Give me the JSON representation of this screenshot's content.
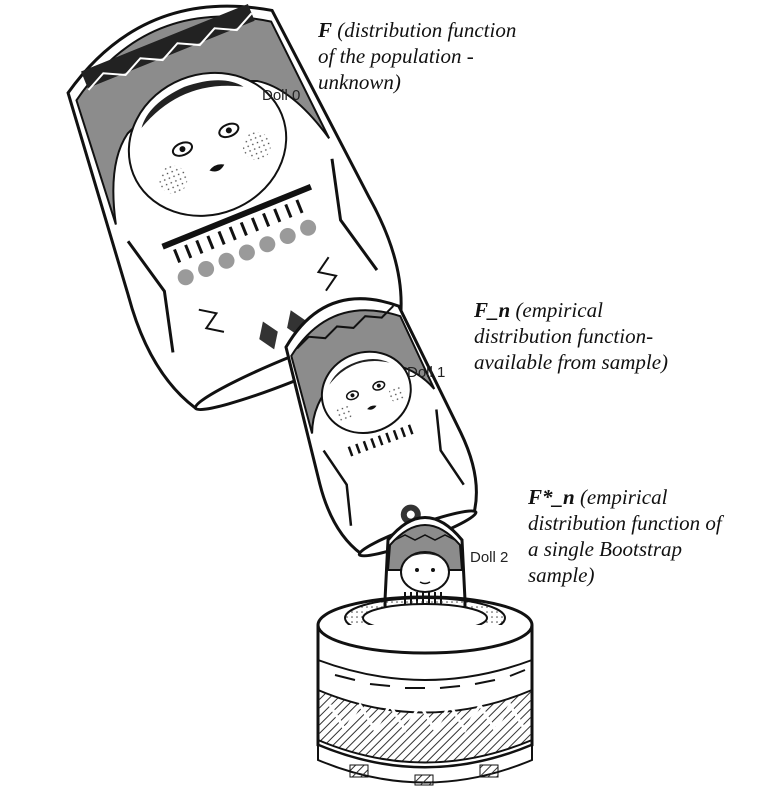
{
  "labels": {
    "doll0": "Doll 0",
    "doll1": "Doll 1",
    "doll2": "Doll 2"
  },
  "annotations": {
    "population": {
      "symbol": "F",
      "lines": [
        "(distribution function",
        "of the population -",
        "unknown)"
      ]
    },
    "empirical": {
      "symbol": "F_n",
      "lines": [
        "(empirical",
        "distribution function-",
        "available from sample)"
      ]
    },
    "bootstrap": {
      "symbol": "F*_n",
      "lines": [
        "(empirical",
        "distribution function of",
        "a single Bootstrap",
        "sample)"
      ]
    }
  },
  "colors": {
    "ink": "#111111",
    "grey": "#9a9a9a",
    "dark": "#444444"
  }
}
